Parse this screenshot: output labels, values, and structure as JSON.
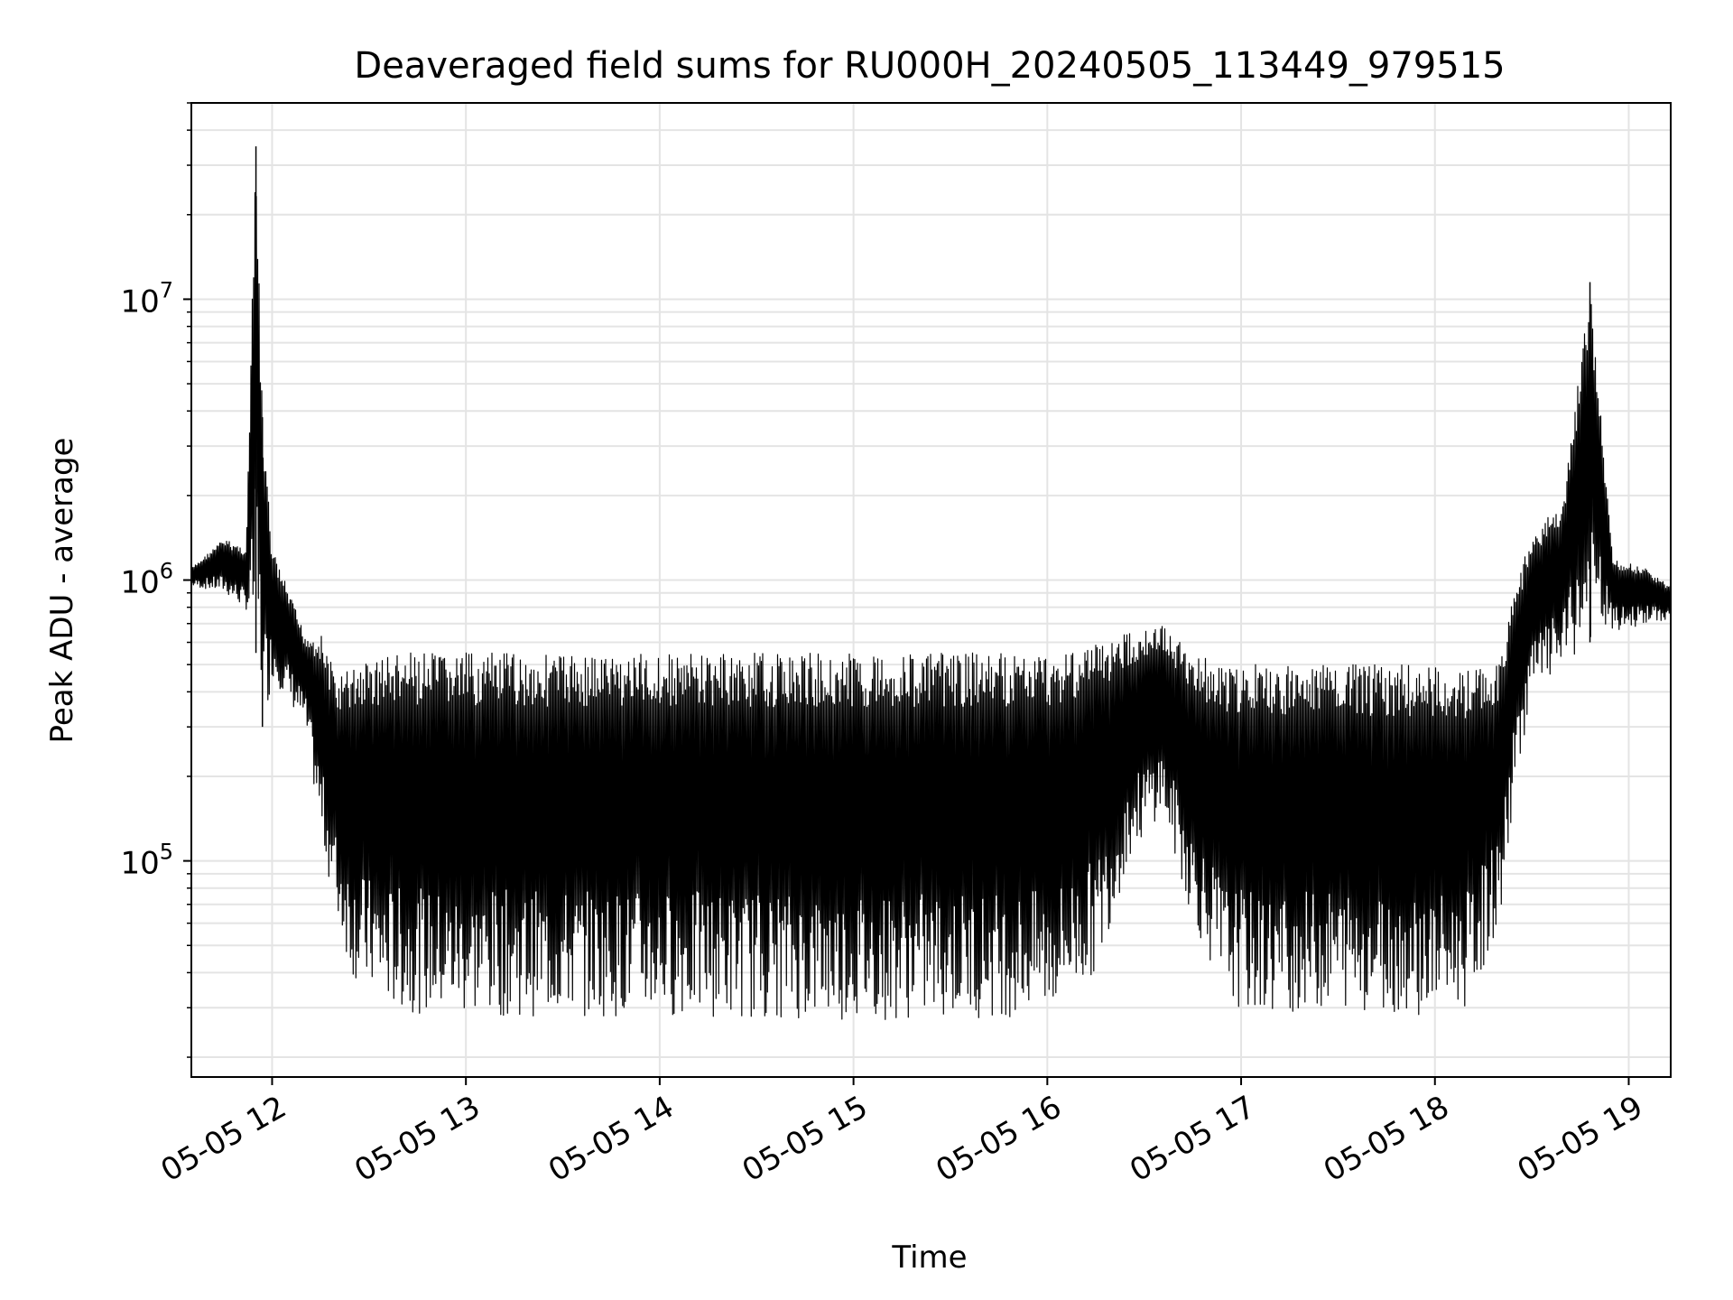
{
  "chart_data": {
    "type": "line",
    "title": "Deaveraged field sums for RU000H_20240505_113449_979515",
    "xlabel": "Time",
    "ylabel": "Peak ADU - average",
    "yscale": "log",
    "ylim": [
      17000,
      50000000
    ],
    "xlim": [
      "2024-05-05 11:35",
      "2024-05-05 19:13"
    ],
    "grid": true,
    "line_color": "#000000",
    "x_ticks": [
      {
        "t": "2024-05-05 12:00",
        "label": "05-05 12"
      },
      {
        "t": "2024-05-05 13:00",
        "label": "05-05 13"
      },
      {
        "t": "2024-05-05 14:00",
        "label": "05-05 14"
      },
      {
        "t": "2024-05-05 15:00",
        "label": "05-05 15"
      },
      {
        "t": "2024-05-05 16:00",
        "label": "05-05 16"
      },
      {
        "t": "2024-05-05 17:00",
        "label": "05-05 17"
      },
      {
        "t": "2024-05-05 18:00",
        "label": "05-05 18"
      },
      {
        "t": "2024-05-05 19:00",
        "label": "05-05 19"
      }
    ],
    "y_ticks": [
      {
        "value": 100000,
        "base": "10",
        "exp": "5"
      },
      {
        "value": 1000000,
        "base": "10",
        "exp": "6"
      },
      {
        "value": 10000000,
        "base": "10",
        "exp": "7"
      }
    ],
    "series": [
      {
        "x": [
          "2024-05-05 11:35",
          "2024-05-05 11:45",
          "2024-05-05 11:52",
          "2024-05-05 11:55",
          "2024-05-05 11:57",
          "2024-05-05 12:00",
          "2024-05-05 12:10",
          "2024-05-05 12:15",
          "2024-05-05 12:20",
          "2024-05-05 12:25",
          "2024-05-05 12:35",
          "2024-05-05 12:50",
          "2024-05-05 13:30",
          "2024-05-05 14:00",
          "2024-05-05 15:00",
          "2024-05-05 16:00",
          "2024-05-05 16:15",
          "2024-05-05 16:25",
          "2024-05-05 16:35",
          "2024-05-05 16:45",
          "2024-05-05 16:55",
          "2024-05-05 17:05",
          "2024-05-05 17:30",
          "2024-05-05 18:00",
          "2024-05-05 18:10",
          "2024-05-05 18:20",
          "2024-05-05 18:25",
          "2024-05-05 18:30",
          "2024-05-05 18:40",
          "2024-05-05 18:48",
          "2024-05-05 18:55",
          "2024-05-05 19:05",
          "2024-05-05 19:13"
        ],
        "upper": [
          1100000,
          1400000,
          1300000,
          35000000,
          3800000,
          1300000,
          650000,
          650000,
          450000,
          500000,
          550000,
          550000,
          550000,
          550000,
          550000,
          550000,
          600000,
          650000,
          700000,
          550000,
          500000,
          500000,
          500000,
          500000,
          480000,
          500000,
          1000000,
          1400000,
          2000000,
          11500000,
          1200000,
          1100000,
          950000
        ],
        "lower": [
          950000,
          900000,
          780000,
          550000,
          300000,
          450000,
          300000,
          120000,
          60000,
          38000,
          30000,
          28000,
          28000,
          28000,
          27000,
          28000,
          40000,
          100000,
          150000,
          60000,
          32000,
          28000,
          30000,
          28000,
          30000,
          60000,
          200000,
          400000,
          500000,
          600000,
          650000,
          700000,
          720000
        ]
      }
    ]
  }
}
